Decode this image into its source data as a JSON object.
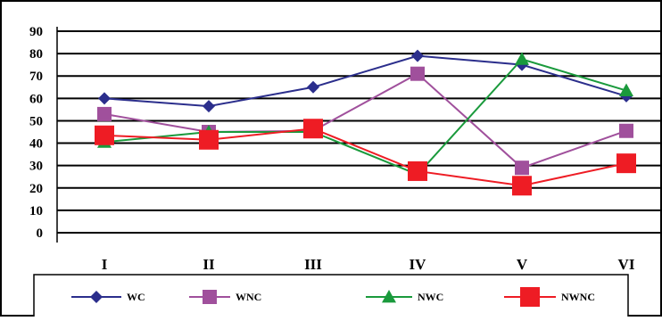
{
  "chart_data": {
    "type": "line",
    "title": "",
    "xlabel": "",
    "ylabel": "",
    "categories": [
      "I",
      "II",
      "III",
      "IV",
      "V",
      "VI"
    ],
    "y_ticks": [
      "0",
      "10",
      "20",
      "30",
      "40",
      "50",
      "60",
      "70",
      "80",
      "90"
    ],
    "ylim": [
      0,
      90
    ],
    "grid": "horizontal",
    "legend_position": "bottom",
    "series": [
      {
        "name": "WC",
        "color": "#2b2e8c",
        "marker": "diamond",
        "values": [
          60,
          56.5,
          65,
          79,
          75,
          61
        ]
      },
      {
        "name": "WNC",
        "color": "#a0509c",
        "marker": "square",
        "values": [
          53,
          45,
          45.5,
          71,
          29,
          45.5
        ]
      },
      {
        "name": "NWC",
        "color": "#1a9a3c",
        "marker": "triangle",
        "values": [
          40.5,
          45,
          45,
          26,
          77.5,
          63.5
        ]
      },
      {
        "name": "NWNC",
        "color": "#ee1c24",
        "marker": "square-large",
        "values": [
          43.5,
          41.5,
          46.5,
          27.5,
          21,
          31
        ]
      }
    ]
  }
}
